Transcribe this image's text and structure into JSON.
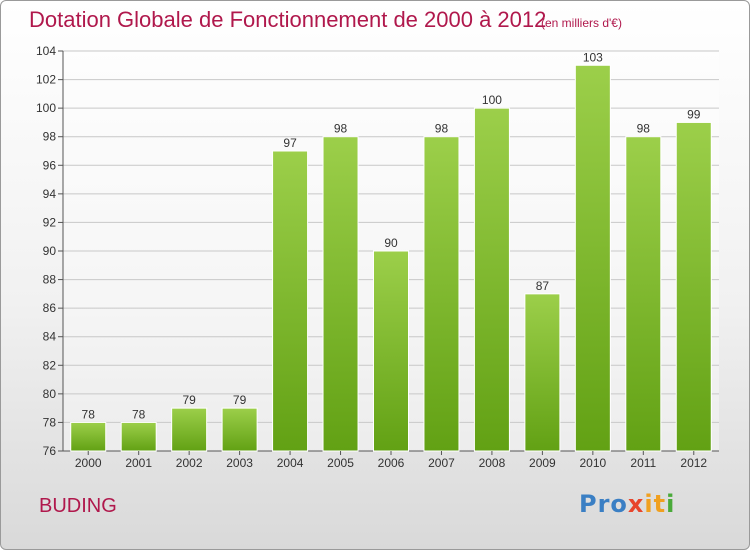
{
  "title": "Dotation Globale de Fonctionnement de 2000 à 2012",
  "unit_note": "(en milliers d'€)",
  "commune": "BUDING",
  "logo": {
    "text": "Proxiti",
    "parts": [
      "Pro",
      "x",
      "it",
      "i"
    ]
  },
  "colors": {
    "title": "#b0184c",
    "bar_light": "#9ccf4a",
    "bar_dark": "#62a114",
    "grid": "#c8c8c8",
    "axis": "#555555"
  },
  "chart_data": {
    "type": "bar",
    "categories": [
      "2000",
      "2001",
      "2002",
      "2003",
      "2004",
      "2005",
      "2006",
      "2007",
      "2008",
      "2009",
      "2010",
      "2011",
      "2012"
    ],
    "values": [
      78,
      78,
      79,
      79,
      97,
      98,
      90,
      98,
      100,
      87,
      103,
      98,
      99
    ],
    "data_labels": [
      "78",
      "78",
      "79",
      "79",
      "97",
      "98",
      "90",
      "98",
      "100",
      "87",
      "103",
      "98",
      "99"
    ],
    "ylim": [
      76,
      104
    ],
    "yticks": [
      76,
      78,
      80,
      82,
      84,
      86,
      88,
      90,
      92,
      94,
      96,
      98,
      100,
      102,
      104
    ],
    "grid": true,
    "legend": "none"
  }
}
